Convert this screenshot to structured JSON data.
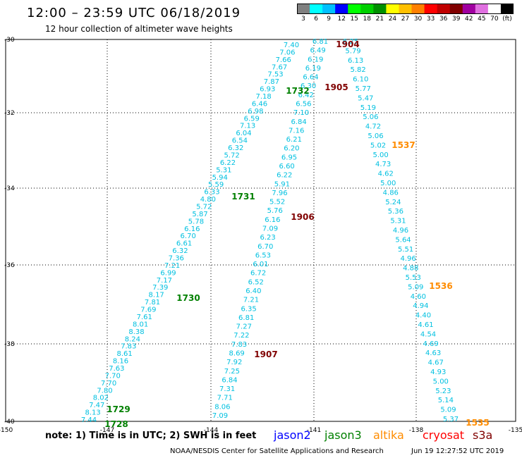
{
  "header": {
    "title": "12:00 – 23:59 UTC 06/18/2019",
    "subtitle": "12 hour collection of altimeter wave heights"
  },
  "colorbar": {
    "colors": [
      "#808080",
      "#00ffff",
      "#00c0ff",
      "#0000ff",
      "#00ff00",
      "#00d000",
      "#009000",
      "#ffff00",
      "#ffc000",
      "#ff8000",
      "#ff0000",
      "#c00000",
      "#800000",
      "#a000a0",
      "#e070e0",
      "#ffffff",
      "#000000"
    ],
    "labels": [
      "3",
      "6",
      "9",
      "12",
      "15",
      "18",
      "21",
      "24",
      "27",
      "30",
      "33",
      "36",
      "39",
      "42",
      "45",
      "70",
      "(ft)"
    ]
  },
  "map": {
    "lon_ticks": [
      "-150",
      "-147",
      "-144",
      "-141",
      "-138",
      "-135"
    ],
    "lat_ticks": [
      "-30",
      "-32",
      "-34",
      "-36",
      "-38",
      "-40"
    ],
    "wave_color": "#00c0e0",
    "tracks": [
      {
        "values": [
          "7.44",
          "8.13",
          "7.47",
          "8.02",
          "7.80",
          "7.70",
          "7.70",
          "7.63",
          "8.16",
          "8.61",
          "7.83",
          "8.24",
          "8.38",
          "8.01",
          "7.61",
          "7.69",
          "7.81",
          "8.17",
          "7.39",
          "7.17",
          "6.99",
          "7.21",
          "7.36",
          "6.32",
          "6.61",
          "6.70",
          "6.16",
          "5.78",
          "5.87",
          "5.72",
          "4.80",
          "6.33",
          "5.59",
          "5.94",
          "5.31",
          "6.22",
          "5.72",
          "6.32",
          "6.54",
          "6.04",
          "7.13",
          "6.59",
          "6.98",
          "6.46",
          "7.18",
          "6.93",
          "7.87",
          "7.53",
          "7.67",
          "7.66",
          "7.06",
          "7.40"
        ]
      },
      {
        "values": [
          "7.09",
          "8.06",
          "7.71",
          "7.31",
          "6.84",
          "7.25",
          "7.92",
          "8.69",
          "7.83",
          "7.22",
          "7.27",
          "6.81",
          "6.35",
          "7.21",
          "6.40",
          "6.52",
          "6.72",
          "6.01",
          "6.53",
          "6.70",
          "6.23",
          "7.09",
          "6.16",
          "5.76",
          "5.52",
          "7.96",
          "5.91",
          "6.22",
          "6.60",
          "6.95",
          "6.20",
          "6.21",
          "7.16",
          "6.84",
          "7.10",
          "6.56",
          "6.42",
          "6.30",
          "6.64",
          "6.19",
          "6.19",
          "6.49",
          "6.81"
        ]
      },
      {
        "values": [
          "6.25",
          "5.79",
          "6.13",
          "5.82",
          "6.10",
          "5.77",
          "5.47",
          "5.19",
          "5.06",
          "4.72",
          "5.06",
          "5.02",
          "5.00",
          "4.73",
          "4.62",
          "5.00",
          "4.86",
          "5.24",
          "5.36",
          "5.31",
          "4.96",
          "5.64",
          "5.51",
          "4.96",
          "4.88",
          "5.53",
          "5.09",
          "4.60",
          "4.94",
          "4.40",
          "4.61",
          "4.54",
          "4.69",
          "4.63",
          "4.67",
          "4.93",
          "5.00",
          "5.23",
          "5.14",
          "5.09",
          "5.37"
        ]
      }
    ],
    "time_labels": [
      {
        "text": "1728",
        "color": "#008000"
      },
      {
        "text": "1729",
        "color": "#008000"
      },
      {
        "text": "1730",
        "color": "#008000"
      },
      {
        "text": "1731",
        "color": "#008000"
      },
      {
        "text": "1732",
        "color": "#008000"
      },
      {
        "text": "1904",
        "color": "#800000"
      },
      {
        "text": "1905",
        "color": "#800000"
      },
      {
        "text": "1906",
        "color": "#800000"
      },
      {
        "text": "1907",
        "color": "#800000"
      },
      {
        "text": "1537",
        "color": "#ff8c00"
      },
      {
        "text": "1536",
        "color": "#ff8c00"
      },
      {
        "text": "1535",
        "color": "#ff8c00"
      }
    ]
  },
  "footer": {
    "note": "note:  1) Time is in UTC;  2) SWH is in feet",
    "satellites": [
      {
        "name": "jason2",
        "color": "#0000ff"
      },
      {
        "name": "jason3",
        "color": "#008000"
      },
      {
        "name": "altika",
        "color": "#ff8c00"
      },
      {
        "name": "cryosat",
        "color": "#ff0000"
      },
      {
        "name": "s3a",
        "color": "#800000"
      }
    ],
    "credit": "NOAA/NESDIS Center for Satellite Applications and Research",
    "timestamp": "Jun 19 12:27:52 UTC 2019"
  }
}
